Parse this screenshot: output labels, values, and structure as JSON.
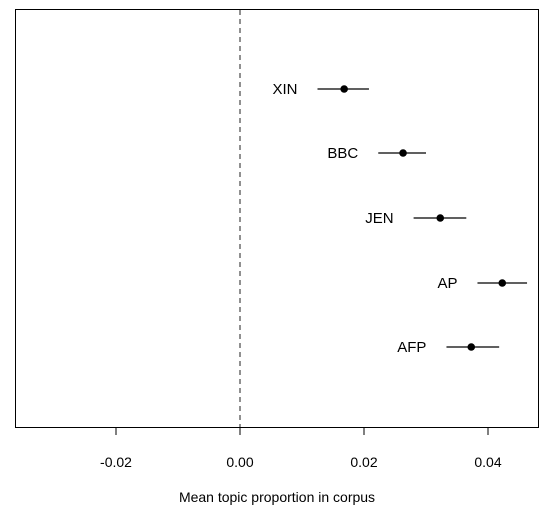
{
  "chart_data": {
    "type": "scatter",
    "title": "",
    "xlabel": "Mean topic proportion in corpus",
    "ylabel": "",
    "xlim": [
      -0.037,
      0.048
    ],
    "x_ticks": [
      "-0.02",
      "0.00",
      "0.02",
      "0.04"
    ],
    "x_tick_values": [
      -0.02,
      0.0,
      0.02,
      0.04
    ],
    "reference_line": {
      "x": 0.0,
      "style": "dashed"
    },
    "grid": false,
    "legend": "none",
    "points": [
      {
        "label": "XIN",
        "estimate": 0.0168,
        "ci": [
          0.0125,
          0.0208
        ]
      },
      {
        "label": "BBC",
        "estimate": 0.0263,
        "ci": [
          0.0223,
          0.03
        ]
      },
      {
        "label": "JEN",
        "estimate": 0.0323,
        "ci": [
          0.028,
          0.0365
        ]
      },
      {
        "label": "AP",
        "estimate": 0.0423,
        "ci": [
          0.0383,
          0.0463
        ]
      },
      {
        "label": "AFP",
        "estimate": 0.0373,
        "ci": [
          0.0333,
          0.0418
        ]
      }
    ],
    "colors": {
      "point": "#000000",
      "line": "#000000",
      "reference": "#555555"
    }
  }
}
